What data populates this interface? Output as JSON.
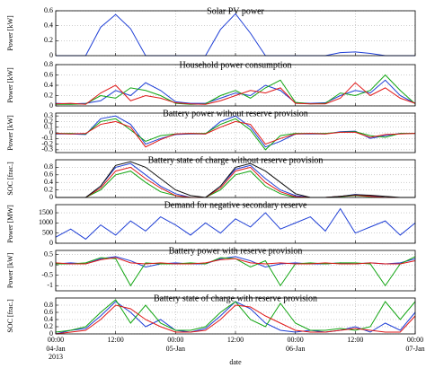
{
  "chart_data": [
    {
      "type": "line",
      "title": "Solar PV power",
      "ylabel": "Power [kW]",
      "ylim": [
        0,
        0.6
      ],
      "yticks": [
        0,
        0.2,
        0.4,
        0.6
      ],
      "xlim": [
        0,
        72
      ],
      "xticks": [
        0,
        12,
        24,
        36,
        48,
        60,
        72
      ],
      "grid": true,
      "x": [
        0,
        3,
        6,
        9,
        12,
        15,
        18,
        21,
        24,
        27,
        30,
        33,
        36,
        39,
        42,
        45,
        48,
        51,
        54,
        57,
        60,
        63,
        66,
        69,
        72
      ],
      "series": [
        {
          "color": "#1f3fd6",
          "values": [
            0,
            0,
            0,
            0.38,
            0.55,
            0.36,
            0,
            0,
            0,
            0,
            0,
            0.35,
            0.56,
            0.3,
            0,
            0,
            0,
            0,
            0,
            0.04,
            0.05,
            0.03,
            0,
            0,
            0
          ]
        }
      ]
    },
    {
      "type": "line",
      "title": "Household power consumption",
      "ylabel": "Power [kW]",
      "ylim": [
        0,
        0.8
      ],
      "yticks": [
        0,
        0.2,
        0.4,
        0.6,
        0.8
      ],
      "xlim": [
        0,
        72
      ],
      "xticks": [
        0,
        12,
        24,
        36,
        48,
        60,
        72
      ],
      "grid": true,
      "x": [
        0,
        3,
        6,
        9,
        12,
        15,
        18,
        21,
        24,
        27,
        30,
        33,
        36,
        39,
        42,
        45,
        48,
        51,
        54,
        57,
        60,
        63,
        66,
        69,
        72
      ],
      "series": [
        {
          "color": "#1f3fd6",
          "values": [
            0.05,
            0.04,
            0.05,
            0.1,
            0.3,
            0.2,
            0.45,
            0.3,
            0.08,
            0.05,
            0.05,
            0.15,
            0.25,
            0.2,
            0.4,
            0.3,
            0.06,
            0.05,
            0.06,
            0.2,
            0.3,
            0.25,
            0.5,
            0.2,
            0.05
          ]
        },
        {
          "color": "#11a511",
          "values": [
            0.03,
            0.03,
            0.04,
            0.2,
            0.15,
            0.35,
            0.3,
            0.2,
            0.05,
            0.03,
            0.04,
            0.2,
            0.3,
            0.15,
            0.35,
            0.5,
            0.07,
            0.04,
            0.05,
            0.25,
            0.2,
            0.3,
            0.6,
            0.3,
            0.04
          ]
        },
        {
          "color": "#e01818",
          "values": [
            0.04,
            0.05,
            0.03,
            0.25,
            0.4,
            0.1,
            0.2,
            0.15,
            0.06,
            0.04,
            0.03,
            0.1,
            0.2,
            0.3,
            0.25,
            0.35,
            0.05,
            0.04,
            0.04,
            0.15,
            0.45,
            0.2,
            0.35,
            0.15,
            0.05
          ]
        }
      ]
    },
    {
      "type": "line",
      "title": "Battery power without reserve provision",
      "ylabel": "Power [kW]",
      "ylim": [
        -0.35,
        0.35
      ],
      "yticks": [
        -0.3,
        -0.2,
        -0.1,
        0,
        0.1,
        0.2,
        0.3
      ],
      "xlim": [
        0,
        72
      ],
      "xticks": [
        0,
        12,
        24,
        36,
        48,
        60,
        72
      ],
      "grid": true,
      "x": [
        0,
        3,
        6,
        9,
        12,
        15,
        18,
        21,
        24,
        27,
        30,
        33,
        36,
        39,
        42,
        45,
        48,
        51,
        54,
        57,
        60,
        63,
        66,
        69,
        72
      ],
      "series": [
        {
          "color": "#1f3fd6",
          "values": [
            -0.02,
            -0.02,
            -0.03,
            0.25,
            0.3,
            0.15,
            -0.2,
            -0.1,
            -0.03,
            -0.02,
            -0.02,
            0.2,
            0.3,
            0.1,
            -0.25,
            -0.15,
            -0.02,
            -0.02,
            -0.02,
            0.02,
            0.03,
            -0.1,
            -0.05,
            -0.01,
            -0.01
          ]
        },
        {
          "color": "#11a511",
          "values": [
            -0.01,
            -0.01,
            -0.02,
            0.2,
            0.25,
            0.05,
            -0.15,
            -0.05,
            -0.02,
            -0.01,
            -0.01,
            0.15,
            0.25,
            0.05,
            -0.3,
            -0.05,
            -0.01,
            -0.01,
            -0.01,
            0.01,
            0.02,
            -0.05,
            -0.08,
            -0.01,
            -0.01
          ]
        },
        {
          "color": "#e01818",
          "values": [
            -0.01,
            -0.02,
            -0.01,
            0.15,
            0.2,
            0.1,
            -0.25,
            -0.12,
            -0.02,
            -0.01,
            -0.02,
            0.1,
            0.2,
            0.15,
            -0.2,
            -0.1,
            -0.02,
            -0.01,
            -0.02,
            0.01,
            0.01,
            -0.08,
            -0.03,
            -0.02,
            -0.01
          ]
        }
      ]
    },
    {
      "type": "line",
      "title": "Battery state of charge without reserve provision",
      "ylabel": "SOC [frac.]",
      "ylim": [
        0,
        1
      ],
      "yticks": [
        0,
        0.2,
        0.4,
        0.6,
        0.8
      ],
      "xlim": [
        0,
        72
      ],
      "xticks": [
        0,
        12,
        24,
        36,
        48,
        60,
        72
      ],
      "grid": true,
      "x": [
        0,
        3,
        6,
        9,
        12,
        15,
        18,
        21,
        24,
        27,
        30,
        33,
        36,
        39,
        42,
        45,
        48,
        51,
        54,
        57,
        60,
        63,
        66,
        69,
        72
      ],
      "series": [
        {
          "color": "#1f3fd6",
          "values": [
            0,
            0,
            0,
            0.3,
            0.8,
            0.9,
            0.6,
            0.3,
            0.1,
            0,
            0,
            0.3,
            0.75,
            0.85,
            0.5,
            0.2,
            0.05,
            0,
            0,
            0.03,
            0.08,
            0.05,
            0,
            0,
            0
          ]
        },
        {
          "color": "#11a511",
          "values": [
            0,
            0,
            0,
            0.2,
            0.6,
            0.7,
            0.4,
            0.15,
            0.05,
            0,
            0,
            0.2,
            0.6,
            0.7,
            0.3,
            0.1,
            0,
            0,
            0,
            0.02,
            0.05,
            0.02,
            0,
            0,
            0
          ]
        },
        {
          "color": "#e01818",
          "values": [
            0,
            0,
            0,
            0.25,
            0.7,
            0.8,
            0.5,
            0.25,
            0.05,
            0,
            0,
            0.25,
            0.7,
            0.8,
            0.4,
            0.15,
            0.02,
            0,
            0,
            0.03,
            0.06,
            0.03,
            0,
            0,
            0
          ]
        },
        {
          "color": "#111111",
          "values": [
            0,
            0,
            0,
            0.3,
            0.85,
            0.95,
            0.8,
            0.5,
            0.2,
            0.05,
            0,
            0.3,
            0.8,
            0.9,
            0.7,
            0.4,
            0.1,
            0,
            0,
            0.03,
            0.07,
            0.06,
            0.03,
            0,
            0
          ]
        }
      ]
    },
    {
      "type": "line",
      "title": "Demand for negative secondary reserve",
      "ylabel": "Power [MW]",
      "ylim": [
        0,
        1900
      ],
      "yticks": [
        0,
        500,
        1000,
        1500
      ],
      "xlim": [
        0,
        72
      ],
      "xticks": [
        0,
        12,
        24,
        36,
        48,
        60,
        72
      ],
      "grid": true,
      "x": [
        0,
        3,
        6,
        9,
        12,
        15,
        18,
        21,
        24,
        27,
        30,
        33,
        36,
        39,
        42,
        45,
        48,
        51,
        54,
        57,
        60,
        63,
        66,
        69,
        72
      ],
      "series": [
        {
          "color": "#1f3fd6",
          "values": [
            300,
            700,
            200,
            900,
            400,
            1100,
            600,
            1300,
            900,
            400,
            1000,
            500,
            1200,
            800,
            1500,
            700,
            1000,
            1300,
            600,
            1700,
            500,
            800,
            1100,
            400,
            1000
          ]
        }
      ]
    },
    {
      "type": "line",
      "title": "Battery power with reserve provision",
      "ylabel": "Power [kW]",
      "ylim": [
        -1.25,
        0.7
      ],
      "yticks": [
        -1,
        -0.5,
        0,
        0.5
      ],
      "xlim": [
        0,
        72
      ],
      "xticks": [
        0,
        12,
        24,
        36,
        48,
        60,
        72
      ],
      "grid": true,
      "x": [
        0,
        3,
        6,
        9,
        12,
        15,
        18,
        21,
        24,
        27,
        30,
        33,
        36,
        39,
        42,
        45,
        48,
        51,
        54,
        57,
        60,
        63,
        66,
        69,
        72
      ],
      "series": [
        {
          "color": "#1f3fd6",
          "values": [
            0.05,
            0.1,
            0.05,
            0.3,
            0.4,
            0.2,
            -0.1,
            0.05,
            0.1,
            0.05,
            0.05,
            0.3,
            0.4,
            0.2,
            -0.1,
            0.05,
            0.1,
            0.05,
            0.05,
            0.1,
            0.05,
            0.1,
            0.05,
            0.1,
            0.3
          ]
        },
        {
          "color": "#11a511",
          "values": [
            0.05,
            0.05,
            0.1,
            0.35,
            0.3,
            -1,
            0.1,
            0.05,
            0.05,
            0.1,
            0.05,
            0.35,
            0.3,
            -0.1,
            0.2,
            -1,
            0.05,
            0.1,
            0.05,
            0.1,
            0.1,
            0.05,
            -1,
            0.05,
            0.4
          ]
        },
        {
          "color": "#e01818",
          "values": [
            0.1,
            0.05,
            0.05,
            0.25,
            0.35,
            0.1,
            0.05,
            0.1,
            0.05,
            0.05,
            0.1,
            0.25,
            0.3,
            0.1,
            0.05,
            0.1,
            0.05,
            0.05,
            0.1,
            0.05,
            0.05,
            0.1,
            0.05,
            0.05,
            0.2
          ]
        }
      ]
    },
    {
      "type": "line",
      "title": "Battery state of charge with reserve provision",
      "ylabel": "SOC [frac.]",
      "xlabel": "date",
      "ylim": [
        0,
        1
      ],
      "yticks": [
        0,
        0.2,
        0.4,
        0.6,
        0.8
      ],
      "xlim": [
        0,
        72
      ],
      "grid": true,
      "xticks": [
        {
          "value": 0,
          "label": "00:00"
        },
        {
          "value": 12,
          "label": "12:00"
        },
        {
          "value": 24,
          "label": "00:00"
        },
        {
          "value": 36,
          "label": "12:00"
        },
        {
          "value": 48,
          "label": "00:00"
        },
        {
          "value": 60,
          "label": "12:00"
        },
        {
          "value": 72,
          "label": "00:00"
        }
      ],
      "xdate_ticks": [
        {
          "value": 0,
          "label": "04-Jan"
        },
        {
          "value": 24,
          "label": "05-Jan"
        },
        {
          "value": 48,
          "label": "06-Jan"
        },
        {
          "value": 72,
          "label": "07-Jan"
        }
      ],
      "xyear": "2013",
      "x": [
        0,
        3,
        6,
        9,
        12,
        15,
        18,
        21,
        24,
        27,
        30,
        33,
        36,
        39,
        42,
        45,
        48,
        51,
        54,
        57,
        60,
        63,
        66,
        69,
        72
      ],
      "series": [
        {
          "color": "#1f3fd6",
          "values": [
            0,
            0.1,
            0.15,
            0.5,
            0.9,
            0.6,
            0.2,
            0.4,
            0.1,
            0.05,
            0.15,
            0.5,
            0.9,
            0.7,
            0.3,
            0.1,
            0.05,
            0.1,
            0.05,
            0.1,
            0.2,
            0.05,
            0.3,
            0.1,
            0.6
          ]
        },
        {
          "color": "#11a511",
          "values": [
            0.05,
            0.1,
            0.2,
            0.6,
            0.95,
            0.3,
            0.8,
            0.3,
            0.1,
            0.1,
            0.2,
            0.6,
            0.9,
            0.4,
            0.2,
            0.85,
            0.3,
            0.1,
            0.1,
            0.15,
            0.1,
            0.2,
            0.9,
            0.4,
            0.9
          ]
        },
        {
          "color": "#e01818",
          "values": [
            0,
            0.05,
            0.1,
            0.4,
            0.8,
            0.7,
            0.4,
            0.2,
            0.05,
            0.05,
            0.1,
            0.4,
            0.8,
            0.75,
            0.5,
            0.3,
            0.1,
            0.05,
            0.05,
            0.1,
            0.15,
            0.1,
            0.05,
            0.05,
            0.5
          ]
        }
      ]
    }
  ]
}
